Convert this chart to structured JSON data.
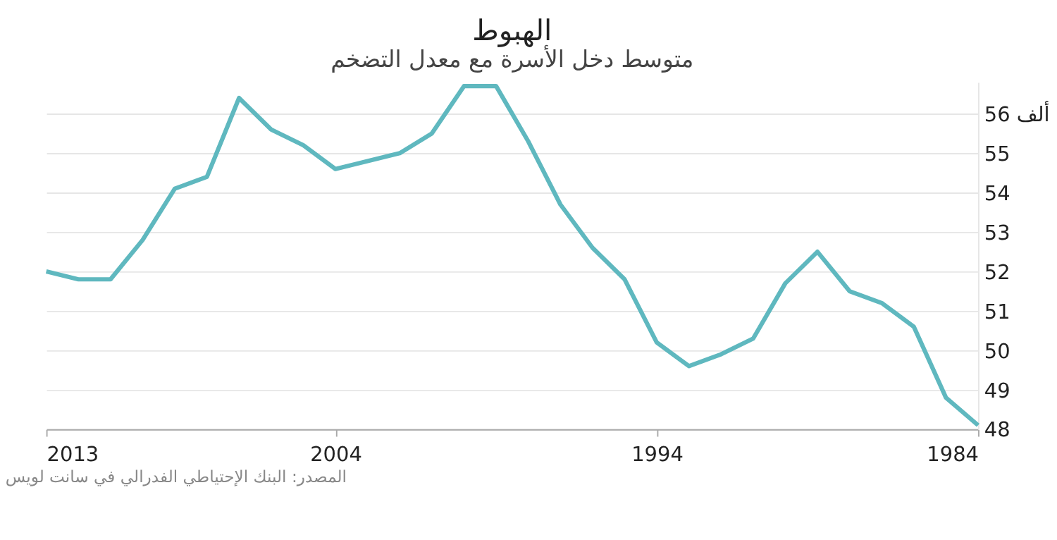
{
  "chart_data": {
    "type": "line",
    "title": "الهبوط",
    "subtitle": "متوسط دخل الأسرة مع معدل التضخم",
    "x": [
      2013,
      2012,
      2011,
      2010,
      2009,
      2008,
      2007,
      2006,
      2005,
      2004,
      2003,
      2002,
      2001,
      2000,
      1999,
      1998,
      1997,
      1996,
      1995,
      1994,
      1993,
      1992,
      1991,
      1990,
      1989,
      1988,
      1987,
      1986,
      1985,
      1984
    ],
    "series": [
      {
        "color": "#5fb8bf",
        "values": [
          52.0,
          51.8,
          51.8,
          52.8,
          54.1,
          54.4,
          56.4,
          55.6,
          55.2,
          54.6,
          54.8,
          55.0,
          55.5,
          56.7,
          56.7,
          55.3,
          53.7,
          52.6,
          51.8,
          50.2,
          49.6,
          49.9,
          50.3,
          51.7,
          52.5,
          51.5,
          51.2,
          50.6,
          48.8,
          48.1
        ]
      }
    ],
    "xlim": [
      2013,
      1984
    ],
    "xticks": [
      2013,
      2004,
      1994,
      1984
    ],
    "ylim": [
      48,
      56.8
    ],
    "yticks": [
      48,
      49,
      50,
      51,
      52,
      53,
      54,
      55,
      {
        "value": 56,
        "label": "56 ألف"
      }
    ],
    "grid": "y",
    "marker": "none",
    "line_style": "solid",
    "annotations": [
      "المصدر: البنك الإحتياطي الفدرالي في سانت لويس"
    ]
  }
}
